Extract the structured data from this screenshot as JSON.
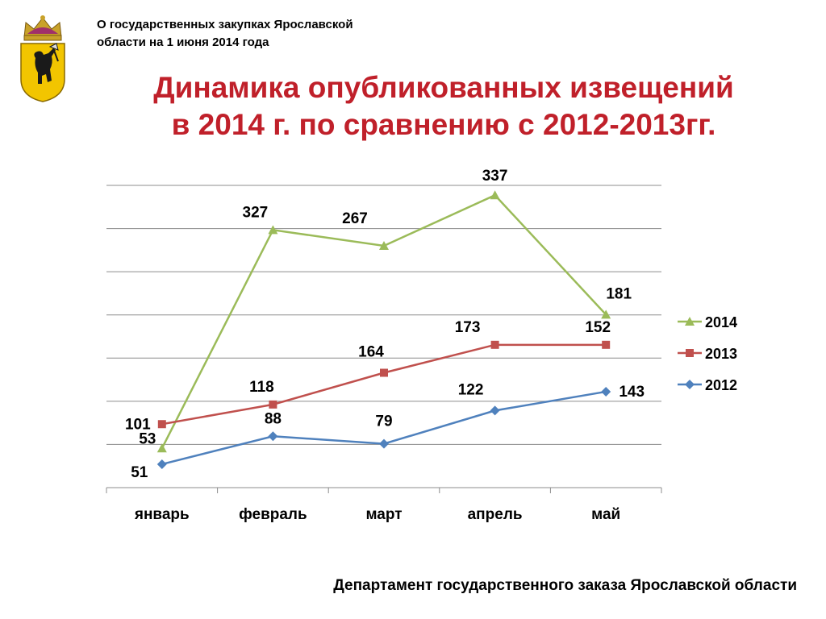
{
  "header": {
    "note_line1": "О государственных закупках Ярославской",
    "note_line2": "области на 1 июня 2014 года",
    "title_line1": "Динамика опубликованных извещений",
    "title_line2": "в 2014 г. по сравнению с 2012-2013гг."
  },
  "logo": {
    "icon": "yaroslavl-coat-of-arms-icon"
  },
  "footer": {
    "text": "Департамент государственного заказа Ярославской области"
  },
  "chart_data": {
    "type": "line",
    "categories": [
      "январь",
      "февраль",
      "март",
      "апрель",
      "май"
    ],
    "series": [
      {
        "name": "2014",
        "color": "#9bbb59",
        "marker": "triangle",
        "values": [
          53,
          327,
          267,
          337,
          181
        ]
      },
      {
        "name": "2013",
        "color": "#c0504d",
        "marker": "square",
        "values": [
          101,
          118,
          164,
          173,
          152
        ]
      },
      {
        "name": "2012",
        "color": "#4f81bd",
        "marker": "diamond",
        "values": [
          51,
          88,
          79,
          122,
          143
        ]
      }
    ],
    "title": "",
    "xlabel": "",
    "ylabel": "",
    "grid": true,
    "legend": "right",
    "plot_positions": {
      "2014": [
        52,
        341,
        320,
        387,
        229
      ],
      "2013": [
        84,
        110,
        152,
        189,
        189
      ],
      "2012": [
        31,
        68,
        58,
        102,
        127
      ]
    }
  }
}
